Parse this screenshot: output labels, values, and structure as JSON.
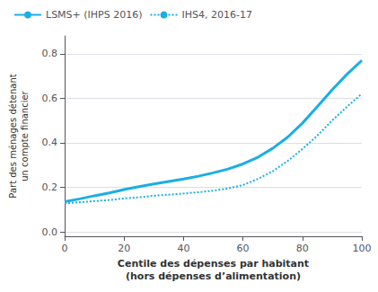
{
  "chart_data": {
    "type": "line",
    "xlabel": "Centile des dépenses par habitant\n(hors dépenses d’alimentation)",
    "ylabel": "Part des ménages détenant\nun compte financier",
    "x": [
      0,
      5,
      10,
      15,
      20,
      25,
      30,
      35,
      40,
      45,
      50,
      55,
      60,
      65,
      70,
      75,
      80,
      85,
      90,
      95,
      100
    ],
    "series": [
      {
        "name": "LSMS+ (IHPS 2016)",
        "color": "#1aaee5",
        "line_style": "solid",
        "values": [
          0.135,
          0.148,
          0.162,
          0.175,
          0.19,
          0.203,
          0.215,
          0.226,
          0.237,
          0.25,
          0.265,
          0.282,
          0.305,
          0.335,
          0.375,
          0.425,
          0.488,
          0.562,
          0.638,
          0.708,
          0.77
        ]
      },
      {
        "name": "IHS4, 2016-17",
        "color": "#1aaee5",
        "line_style": "dotted",
        "values": [
          0.128,
          0.133,
          0.138,
          0.143,
          0.15,
          0.155,
          0.162,
          0.167,
          0.172,
          0.178,
          0.185,
          0.195,
          0.21,
          0.238,
          0.272,
          0.318,
          0.372,
          0.432,
          0.5,
          0.562,
          0.62
        ]
      }
    ],
    "xlim": [
      0,
      100
    ],
    "xticks": [
      0,
      20,
      40,
      60,
      80,
      100
    ],
    "ylim": [
      -0.02,
      0.88
    ],
    "yticks": [
      {
        "value": 0.0,
        "label": "0.0"
      },
      0.2,
      0.4,
      0.6,
      0.8
    ],
    "grid": true,
    "legend": "upper left"
  }
}
